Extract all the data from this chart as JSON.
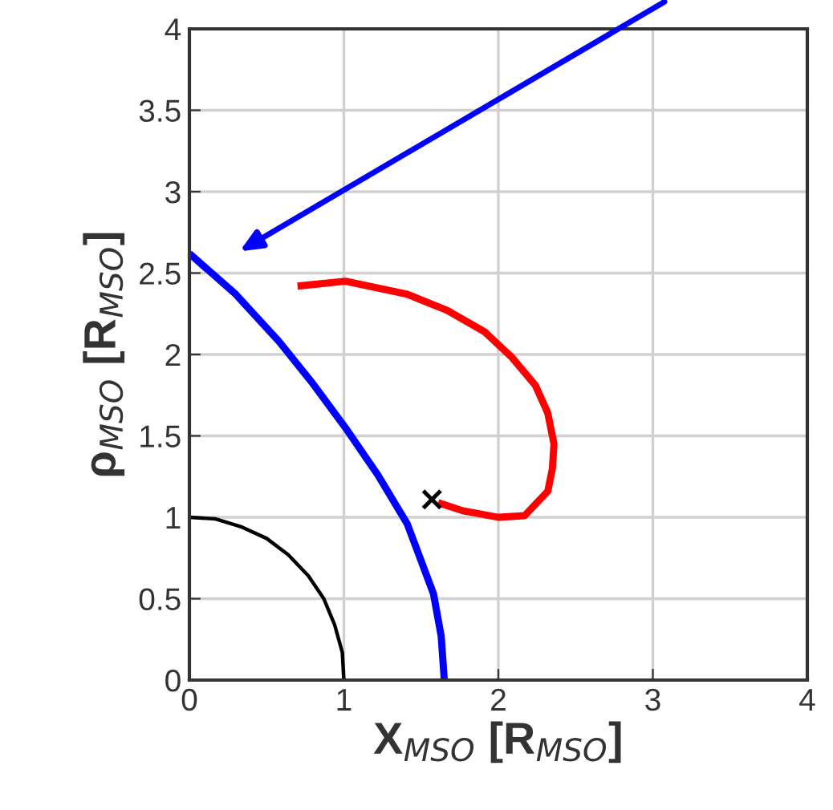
{
  "chart_data": {
    "type": "line",
    "xlabel": "X$_{MSO}$ [R$_{MSO}$]",
    "ylabel": "ρ$_{MSO}$ [R$_{MSO}$]",
    "xlim": [
      0,
      4
    ],
    "ylim": [
      0,
      4
    ],
    "xticks": [
      0,
      1,
      2,
      3,
      4
    ],
    "yticks": [
      0,
      0.5,
      1,
      1.5,
      2,
      2.5,
      3,
      3.5,
      4
    ],
    "grid": true,
    "series": [
      {
        "color": "#000000",
        "x": [
          1,
          0.99,
          0.94,
          0.87,
          0.77,
          0.64,
          0.5,
          0.34,
          0.17,
          0
        ],
        "values": [
          0,
          0.17,
          0.34,
          0.5,
          0.64,
          0.77,
          0.87,
          0.94,
          0.99,
          1
        ]
      },
      {
        "color": "#0000ff",
        "x": [
          0,
          0.3,
          0.58,
          0.8,
          1.01,
          1.22,
          1.41,
          1.58,
          1.63,
          1.65
        ],
        "values": [
          2.62,
          2.37,
          2.08,
          1.82,
          1.55,
          1.26,
          0.96,
          0.53,
          0.27,
          0
        ]
      },
      {
        "color": "#ff0000",
        "x": [
          0.7,
          1.01,
          1.41,
          1.67,
          1.91,
          2.09,
          2.24,
          2.32,
          2.36,
          2.35,
          2.32,
          2.17,
          2.0,
          1.77,
          1.61
        ],
        "values": [
          2.42,
          2.45,
          2.37,
          2.27,
          2.14,
          1.98,
          1.81,
          1.64,
          1.45,
          1.3,
          1.16,
          1.01,
          1.0,
          1.04,
          1.09
        ]
      },
      {
        "type": "scatter",
        "marker": "cross",
        "color": "#000000",
        "x": [
          1.57
        ],
        "values": [
          1.11
        ]
      }
    ]
  }
}
